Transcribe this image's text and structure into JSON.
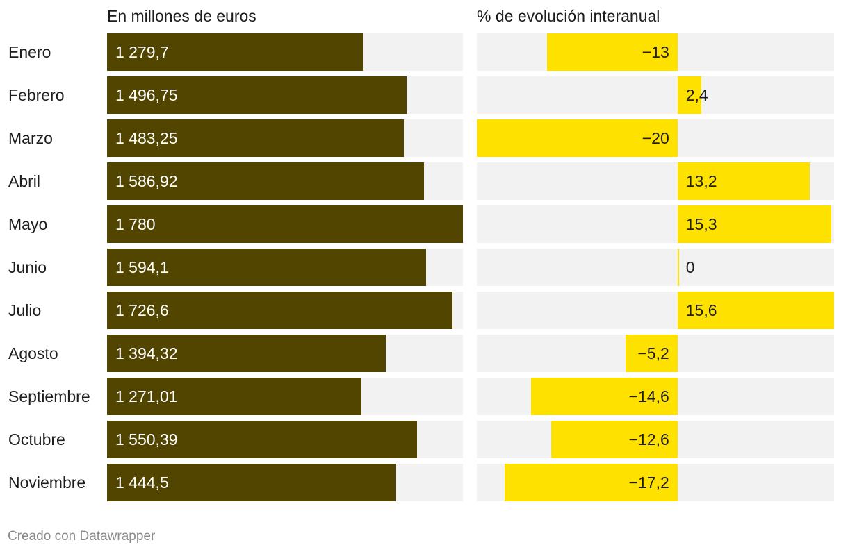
{
  "chart_data": {
    "type": "bar",
    "categories": [
      "Enero",
      "Febrero",
      "Marzo",
      "Abril",
      "Mayo",
      "Junio",
      "Julio",
      "Agosto",
      "Septiembre",
      "Octubre",
      "Noviembre"
    ],
    "panels": [
      {
        "title": "En millones de euros",
        "values": [
          1279.7,
          1496.75,
          1483.25,
          1586.92,
          1780,
          1594.1,
          1726.6,
          1394.32,
          1271.01,
          1550.39,
          1444.5
        ],
        "labels": [
          "1 279,7",
          "1 496,75",
          "1 483,25",
          "1 586,92",
          "1 780",
          "1 594,1",
          "1 726,6",
          "1 394,32",
          "1 271,01",
          "1 550,39",
          "1 444,5"
        ],
        "xlim": [
          0,
          1780
        ],
        "color": "#524500"
      },
      {
        "title": "% de evolución interanual",
        "values": [
          -13,
          2.4,
          -20,
          13.2,
          15.3,
          0,
          15.6,
          -5.2,
          -14.6,
          -12.6,
          -17.2
        ],
        "labels": [
          "−13",
          "2,4",
          "−20",
          "13,2",
          "15,3",
          "0",
          "15,6",
          "−5,2",
          "−14,6",
          "−12,6",
          "−17,2"
        ],
        "xlim": [
          -20,
          15.6
        ],
        "color": "#ffe100"
      }
    ],
    "background_track_color": "#f2f2f2"
  },
  "footer": "Creado con Datawrapper"
}
